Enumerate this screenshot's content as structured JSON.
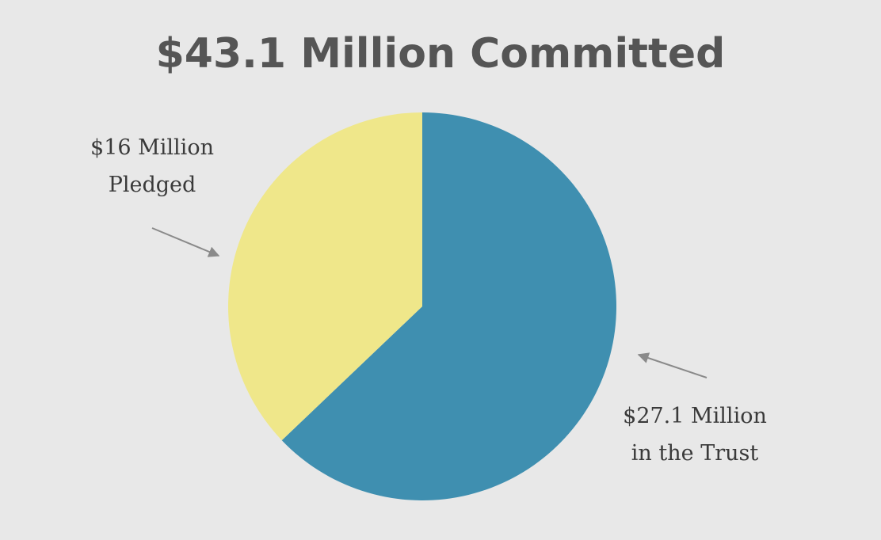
{
  "chart_data": {
    "type": "pie",
    "title": "$43.1 Million Committed",
    "slices": [
      {
        "label_lines": [
          "$27.1 Million",
          "in the Trust"
        ],
        "value": 27.1,
        "color": "#3f8fb0"
      },
      {
        "label_lines": [
          "$16 Million",
          "Pledged"
        ],
        "value": 16,
        "color": "#efe78a"
      }
    ],
    "legend": "none",
    "annotations": "arrows pointing from labels to slices"
  },
  "colors": {
    "background": "#e8e8e8",
    "title": "#555555",
    "arrow": "#8a8a8a"
  }
}
